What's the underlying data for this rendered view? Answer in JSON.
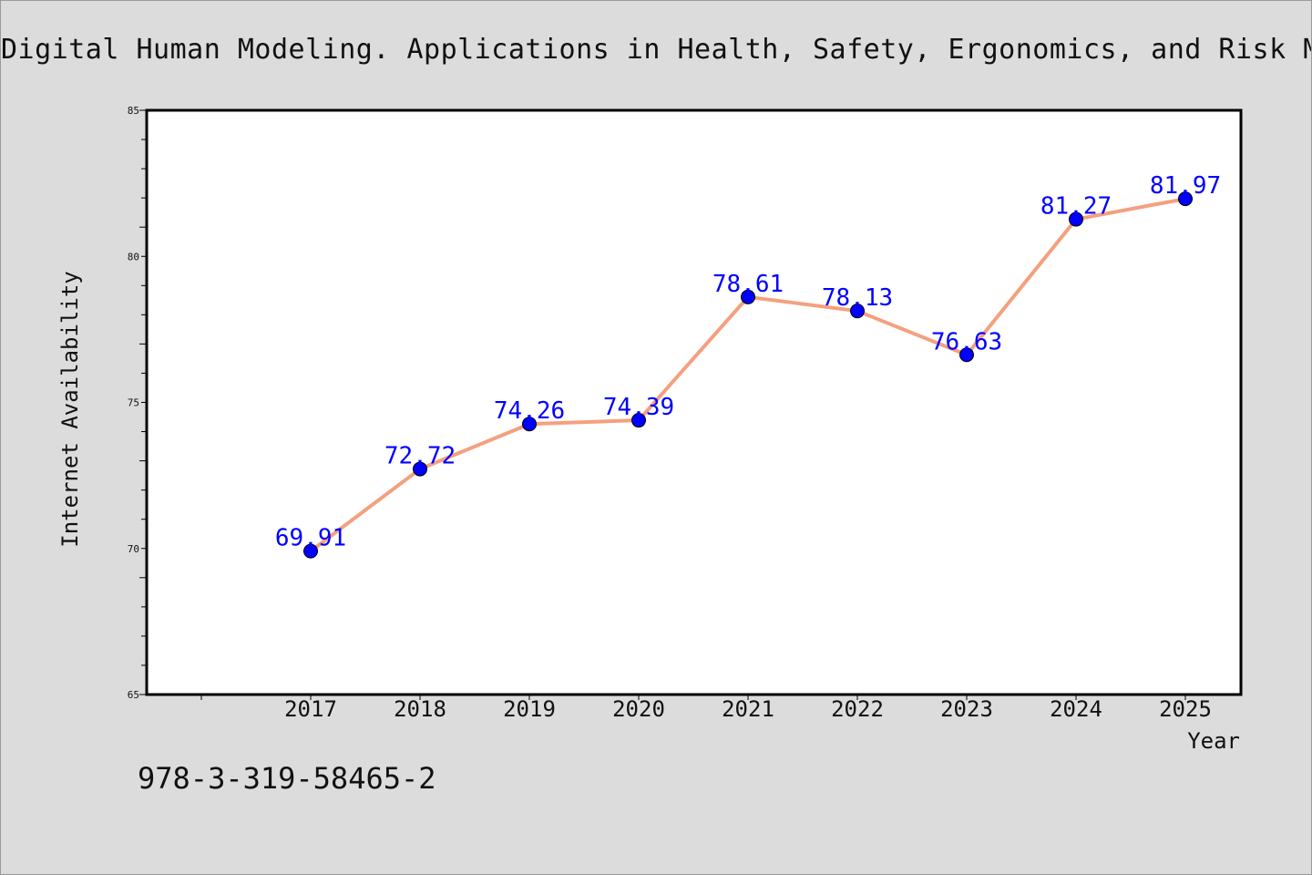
{
  "chart_data": {
    "type": "line",
    "title": "Digital Human Modeling. Applications in Health, Safety, Ergonomics, and Risk Man",
    "xlabel": "Year",
    "ylabel": "Internet Availability",
    "categories": [
      "2017",
      "2018",
      "2019",
      "2020",
      "2021",
      "2022",
      "2023",
      "2024",
      "2025"
    ],
    "series": [
      {
        "values": [
          69.91,
          72.72,
          74.26,
          74.39,
          78.61,
          78.13,
          76.63,
          81.27,
          81.97
        ],
        "labels": [
          "69.91",
          "72.72",
          "74.26",
          "74.39",
          "78.61",
          "78.13",
          "76.63",
          "81.27",
          "81.97"
        ]
      }
    ],
    "ylim": [
      65,
      85
    ],
    "y_ticks": [
      "65",
      "70",
      "75",
      "80",
      "85"
    ],
    "grid": false,
    "line_color": "#f4a07f",
    "marker_color": "#0000ff",
    "label_color": "#0000ff"
  },
  "footer": {
    "note": "978-3-319-58465-2"
  }
}
